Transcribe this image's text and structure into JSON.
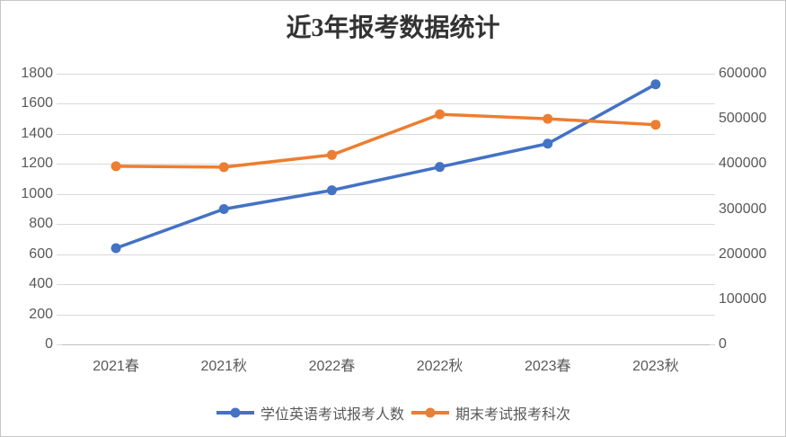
{
  "title": "近3年报考数据统计",
  "chart_data": {
    "type": "line",
    "title": "近3年报考数据统计",
    "categories": [
      "2021春",
      "2021秋",
      "2022春",
      "2022秋",
      "2023春",
      "2023秋"
    ],
    "series": [
      {
        "id": "degree-english-applicants",
        "name": "学位英语考试报考人数",
        "axis": "left",
        "color": "#4472C4",
        "values": [
          640,
          900,
          1025,
          1180,
          1335,
          1730
        ]
      },
      {
        "id": "final-exam-registrations",
        "name": "期末考试报考科次",
        "axis": "right",
        "color": "#ED7D31",
        "values": [
          395000,
          393000,
          420000,
          510000,
          500000,
          487000
        ]
      }
    ],
    "left_axis": {
      "min": 0,
      "max": 1800,
      "step": 200,
      "ticks": [
        0,
        200,
        400,
        600,
        800,
        1000,
        1200,
        1400,
        1600,
        1800
      ]
    },
    "right_axis": {
      "min": 0,
      "max": 600000,
      "step": 100000,
      "ticks": [
        0,
        100000,
        200000,
        300000,
        400000,
        500000,
        600000
      ]
    },
    "grid": true,
    "legend_position": "bottom",
    "colors": {
      "gridline": "#D9D9D9",
      "axis_line": "#BFBFBF",
      "label_text": "#595959",
      "title_text": "#333333"
    }
  }
}
